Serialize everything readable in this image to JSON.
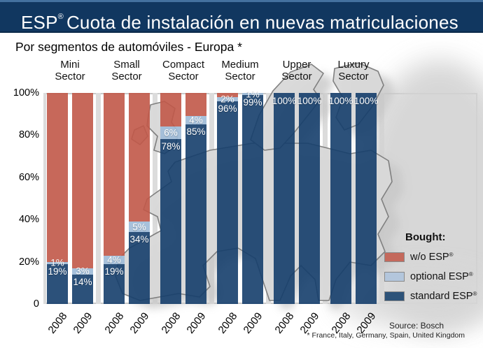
{
  "header": {
    "brand": "ESP",
    "reg": "®",
    "title_rest": "Cuota de instalación en nuevas matriculaciones"
  },
  "subtitle": "Por segmentos de automóviles - Europa *",
  "chart_data": {
    "type": "bar",
    "stacked": true,
    "unit": "%",
    "title": "ESP® Cuota de instalación en nuevas matriculaciones",
    "subtitle": "Por segmentos de automóviles - Europa *",
    "ylim": [
      0,
      100
    ],
    "y_ticks": [
      "100%",
      "80%",
      "60%",
      "40%",
      "20%",
      "0"
    ],
    "x_labels": [
      "2008",
      "2009"
    ],
    "series_order_bottom_to_top": [
      "standard ESP®",
      "optional ESP®",
      "w/o ESP®"
    ],
    "colors": {
      "standard": "#2d5480",
      "optional": "#aec3da",
      "without": "#c6685c"
    },
    "groups": [
      {
        "sector": [
          "Mini",
          "Sector"
        ],
        "bars": [
          {
            "year": "2008",
            "standard": 19,
            "optional": 1,
            "without": 80
          },
          {
            "year": "2009",
            "standard": 14,
            "optional": 3,
            "without": 83
          }
        ]
      },
      {
        "sector": [
          "Small",
          "Sector"
        ],
        "bars": [
          {
            "year": "2008",
            "standard": 19,
            "optional": 4,
            "without": 77
          },
          {
            "year": "2009",
            "standard": 34,
            "optional": 5,
            "without": 61
          }
        ]
      },
      {
        "sector": [
          "Compact",
          "Sector"
        ],
        "bars": [
          {
            "year": "2008",
            "standard": 78,
            "optional": 6,
            "without": 16
          },
          {
            "year": "2009",
            "standard": 85,
            "optional": 4,
            "without": 11
          }
        ]
      },
      {
        "sector": [
          "Medium",
          "Sector"
        ],
        "bars": [
          {
            "year": "2008",
            "standard": 96,
            "optional": 2,
            "without": 2
          },
          {
            "year": "2009",
            "standard": 99,
            "optional": 1,
            "without": 0
          }
        ]
      },
      {
        "sector": [
          "Upper",
          "Sector"
        ],
        "bars": [
          {
            "year": "2008",
            "standard": 100,
            "optional": 0,
            "without": 0
          },
          {
            "year": "2009",
            "standard": 100,
            "optional": 0,
            "without": 0
          }
        ]
      },
      {
        "sector": [
          "Luxury",
          "Sector"
        ],
        "bars": [
          {
            "year": "2008",
            "standard": 100,
            "optional": 0,
            "without": 0
          },
          {
            "year": "2009",
            "standard": 100,
            "optional": 0,
            "without": 0
          }
        ]
      }
    ]
  },
  "legend": {
    "title": "Bought:",
    "items": [
      {
        "label": "w/o ESP",
        "reg": "®",
        "color": "#c4695c"
      },
      {
        "label": "optional ESP",
        "reg": "®",
        "color": "#b3c6dc"
      },
      {
        "label": "standard ESP",
        "reg": "®",
        "color": "#2d5379"
      }
    ]
  },
  "footer": {
    "source": "Source: Bosch",
    "note": "* France, Italy, Germany, Spain, United Kingdom"
  }
}
